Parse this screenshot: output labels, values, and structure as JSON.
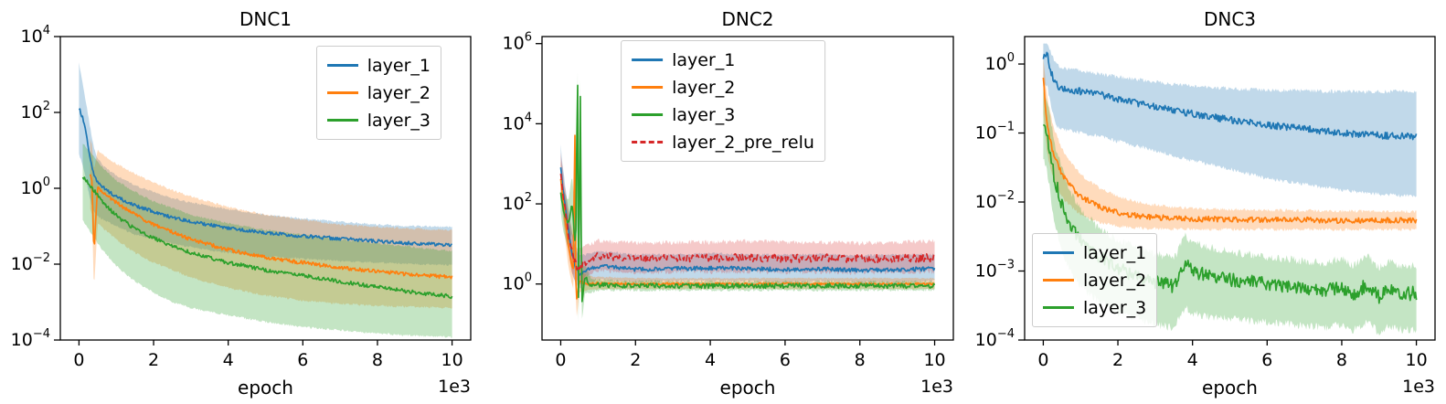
{
  "figure": {
    "background": "#ffffff"
  },
  "chart_data": [
    {
      "type": "line",
      "title": "DNC1",
      "xlabel": "epoch",
      "offset_label": "1e3",
      "y_scale": "log",
      "grid": false,
      "legend_position": "top-right",
      "xlim": [
        -500,
        10500
      ],
      "ylim": [
        0.0001,
        10000
      ],
      "xticks": [
        0,
        2000,
        4000,
        6000,
        8000,
        10000
      ],
      "xtick_labels": [
        "0",
        "2",
        "4",
        "6",
        "8",
        "10"
      ],
      "ytick_exponents": [
        4,
        2,
        0,
        -2,
        -4
      ],
      "series": [
        {
          "name": "layer_1",
          "color": "#1f77b4",
          "dash": false,
          "noise": 0.045,
          "band_alpha": 0.28,
          "x": [
            0,
            100,
            200,
            300,
            400,
            500,
            700,
            1000,
            1500,
            2000,
            2500,
            3000,
            4000,
            5000,
            6000,
            7000,
            8000,
            9000,
            10000
          ],
          "y": [
            130,
            70,
            25,
            6,
            2.2,
            1.4,
            0.95,
            0.6,
            0.35,
            0.24,
            0.17,
            0.13,
            0.09,
            0.068,
            0.055,
            0.047,
            0.04,
            0.035,
            0.032
          ],
          "ylo": [
            8,
            4,
            1.5,
            0.5,
            0.25,
            0.18,
            0.14,
            0.1,
            0.06,
            0.045,
            0.035,
            0.028,
            0.02,
            0.016,
            0.014,
            0.012,
            0.011,
            0.01,
            0.0095
          ],
          "yhi": [
            2000,
            600,
            150,
            40,
            12,
            6,
            3.5,
            2.2,
            1.2,
            0.8,
            0.55,
            0.42,
            0.28,
            0.2,
            0.16,
            0.13,
            0.11,
            0.1,
            0.095
          ]
        },
        {
          "name": "layer_2",
          "color": "#ff7f0e",
          "dash": false,
          "noise": 0.05,
          "band_alpha": 0.28,
          "x": [
            300,
            350,
            400,
            500,
            700,
            1000,
            1500,
            2000,
            2500,
            3000,
            4000,
            5000,
            6000,
            7000,
            8000,
            9000,
            10000
          ],
          "y": [
            2.5,
            1.6,
            0.02,
            1.1,
            0.7,
            0.42,
            0.2,
            0.11,
            0.07,
            0.045,
            0.024,
            0.015,
            0.011,
            0.008,
            0.0065,
            0.0052,
            0.0045
          ],
          "ylo": [
            0.3,
            0.2,
            0.002,
            0.12,
            0.08,
            0.045,
            0.02,
            0.011,
            0.007,
            0.0045,
            0.0024,
            0.0015,
            0.0011,
            0.0009,
            0.0008,
            0.00075,
            0.0007
          ],
          "yhi": [
            20,
            15,
            3,
            10,
            7,
            4.5,
            2.4,
            1.4,
            0.9,
            0.6,
            0.32,
            0.2,
            0.15,
            0.11,
            0.095,
            0.085,
            0.08
          ]
        },
        {
          "name": "layer_3",
          "color": "#2ca02c",
          "dash": false,
          "noise": 0.05,
          "band_alpha": 0.28,
          "x": [
            100,
            200,
            300,
            400,
            500,
            700,
            1000,
            1500,
            2000,
            2500,
            3000,
            4000,
            5000,
            6000,
            7000,
            8000,
            9000,
            10000
          ],
          "y": [
            2.0,
            1.6,
            1.2,
            0.9,
            0.65,
            0.38,
            0.19,
            0.085,
            0.048,
            0.03,
            0.02,
            0.011,
            0.007,
            0.005,
            0.0035,
            0.0025,
            0.0018,
            0.0014
          ],
          "ylo": [
            0.15,
            0.1,
            0.07,
            0.05,
            0.035,
            0.02,
            0.009,
            0.0035,
            0.0018,
            0.001,
            0.0007,
            0.00045,
            0.0003,
            0.00022,
            0.00018,
            0.00015,
            0.00013,
            0.00012
          ],
          "yhi": [
            15,
            12,
            9,
            7,
            5,
            3,
            1.6,
            0.8,
            0.45,
            0.3,
            0.2,
            0.12,
            0.08,
            0.06,
            0.045,
            0.035,
            0.028,
            0.022
          ]
        }
      ]
    },
    {
      "type": "line",
      "title": "DNC2",
      "xlabel": "epoch",
      "offset_label": "1e3",
      "y_scale": "log",
      "grid": false,
      "legend_position": "top-center",
      "xlim": [
        -500,
        10500
      ],
      "ylim": [
        0.04,
        1500000
      ],
      "xticks": [
        0,
        2000,
        4000,
        6000,
        8000,
        10000
      ],
      "xtick_labels": [
        "0",
        "2",
        "4",
        "6",
        "8",
        "10"
      ],
      "ytick_exponents": [
        6,
        4,
        2,
        0
      ],
      "series": [
        {
          "name": "layer_1",
          "color": "#1f77b4",
          "dash": false,
          "noise": 0.05,
          "band_alpha": 0.28,
          "x": [
            0,
            50,
            100,
            200,
            300,
            400,
            500,
            700,
            1000,
            1500,
            2000,
            3000,
            4000,
            5000,
            6000,
            7000,
            8000,
            9000,
            10000
          ],
          "y": [
            900,
            300,
            120,
            25,
            6,
            2.5,
            1.8,
            2.2,
            2.8,
            2.6,
            2.3,
            2.4,
            2.5,
            2.4,
            2.3,
            2.4,
            2.2,
            2.3,
            2.4
          ],
          "ylo": [
            300,
            100,
            40,
            8,
            2,
            1.0,
            0.8,
            1.0,
            1.3,
            1.2,
            1.1,
            1.2,
            1.2,
            1.2,
            1.1,
            1.2,
            1.1,
            1.1,
            1.2
          ],
          "yhi": [
            3000,
            900,
            400,
            80,
            20,
            7,
            5,
            5.5,
            6.5,
            6,
            5.5,
            5.5,
            5.8,
            5.5,
            5.4,
            5.5,
            5.2,
            5.4,
            5.5
          ]
        },
        {
          "name": "layer_2",
          "color": "#ff7f0e",
          "dash": false,
          "noise": 0.03,
          "band_alpha": 0.28,
          "x": [
            0,
            100,
            200,
            300,
            350,
            370,
            400,
            430,
            500,
            700,
            1000,
            2000,
            4000,
            6000,
            8000,
            10000
          ],
          "y": [
            400,
            60,
            10,
            3,
            2,
            500000,
            1.5,
            0.4,
            1.2,
            1.0,
            1.05,
            1.0,
            1.0,
            1.0,
            1.0,
            1.0
          ],
          "ylo": [
            150,
            20,
            3,
            1,
            0.7,
            50,
            0.5,
            0.15,
            0.6,
            0.7,
            0.75,
            0.75,
            0.75,
            0.75,
            0.75,
            0.75
          ],
          "yhi": [
            1200,
            200,
            40,
            10,
            8,
            600000,
            6,
            2,
            2.5,
            1.6,
            1.5,
            1.4,
            1.4,
            1.4,
            1.4,
            1.4
          ]
        },
        {
          "name": "layer_3",
          "color": "#2ca02c",
          "dash": false,
          "noise": 0.06,
          "band_alpha": 0.28,
          "x": [
            0,
            100,
            200,
            300,
            400,
            450,
            480,
            520,
            560,
            650,
            800,
            1000,
            1500,
            2000,
            3000,
            4000,
            5000,
            6000,
            7000,
            8000,
            9000,
            10000
          ],
          "y": [
            200,
            50,
            30,
            100,
            8,
            300000,
            0.07,
            150000,
            0.3,
            1.5,
            0.9,
            0.95,
            0.9,
            0.92,
            0.9,
            0.9,
            0.9,
            0.9,
            0.9,
            0.9,
            0.9,
            0.9
          ],
          "ylo": [
            60,
            15,
            8,
            20,
            1,
            100,
            0.04,
            80,
            0.1,
            0.6,
            0.6,
            0.7,
            0.7,
            0.7,
            0.7,
            0.7,
            0.7,
            0.7,
            0.7,
            0.7,
            0.7,
            0.7
          ],
          "yhi": [
            600,
            200,
            120,
            500,
            60,
            500000,
            2,
            400000,
            3,
            3,
            1.4,
            1.3,
            1.2,
            1.2,
            1.15,
            1.15,
            1.15,
            1.15,
            1.15,
            1.15,
            1.15,
            1.15
          ]
        },
        {
          "name": "layer_2_pre_relu",
          "color": "#d62728",
          "dash": true,
          "noise": 0.1,
          "band_alpha": 0.25,
          "x": [
            0,
            50,
            100,
            200,
            300,
            400,
            500,
            700,
            1000,
            1500,
            2000,
            3000,
            4000,
            5000,
            6000,
            7000,
            8000,
            9000,
            10000
          ],
          "y": [
            600,
            250,
            90,
            20,
            6,
            3,
            2.5,
            3.5,
            5,
            4.5,
            4.2,
            4.5,
            4.4,
            4.6,
            4.3,
            4.5,
            4.2,
            4.4,
            4.5
          ],
          "ylo": [
            200,
            80,
            30,
            6,
            2,
            1.2,
            1.0,
            1.5,
            2.2,
            2.0,
            1.9,
            2.0,
            2.0,
            2.0,
            1.9,
            2.0,
            1.9,
            2.0,
            2.0
          ],
          "yhi": [
            2000,
            800,
            300,
            70,
            20,
            9,
            7,
            9,
            12,
            11,
            10.5,
            11,
            11,
            11.5,
            11,
            11,
            10.5,
            11,
            12
          ]
        }
      ]
    },
    {
      "type": "line",
      "title": "DNC3",
      "xlabel": "epoch",
      "offset_label": "1e3",
      "y_scale": "log",
      "grid": false,
      "legend_position": "bottom-left",
      "xlim": [
        -500,
        10500
      ],
      "ylim": [
        0.0001,
        2.5
      ],
      "xticks": [
        0,
        2000,
        4000,
        6000,
        8000,
        10000
      ],
      "xtick_labels": [
        "0",
        "2",
        "4",
        "6",
        "8",
        "10"
      ],
      "ytick_exponents": [
        0,
        -1,
        -2,
        -3,
        -4
      ],
      "series": [
        {
          "name": "layer_1",
          "color": "#1f77b4",
          "dash": false,
          "noise": 0.05,
          "band_alpha": 0.28,
          "x": [
            0,
            100,
            200,
            300,
            400,
            600,
            1000,
            1500,
            2000,
            2500,
            3000,
            4000,
            5000,
            6000,
            7000,
            8000,
            9000,
            10000
          ],
          "y": [
            1.3,
            1.4,
            0.8,
            0.55,
            0.48,
            0.44,
            0.4,
            0.36,
            0.31,
            0.27,
            0.24,
            0.19,
            0.155,
            0.13,
            0.115,
            0.1,
            0.092,
            0.088
          ],
          "ylo": [
            0.5,
            0.5,
            0.25,
            0.15,
            0.12,
            0.11,
            0.1,
            0.09,
            0.075,
            0.065,
            0.055,
            0.04,
            0.03,
            0.022,
            0.018,
            0.015,
            0.013,
            0.012
          ],
          "yhi": [
            2.0,
            2.0,
            1.5,
            1.1,
            0.95,
            0.85,
            0.8,
            0.72,
            0.65,
            0.6,
            0.55,
            0.48,
            0.44,
            0.42,
            0.41,
            0.4,
            0.4,
            0.4
          ]
        },
        {
          "name": "layer_2",
          "color": "#ff7f0e",
          "dash": false,
          "noise": 0.04,
          "band_alpha": 0.28,
          "x": [
            0,
            100,
            200,
            300,
            500,
            700,
            1000,
            1500,
            2000,
            2500,
            3000,
            4000,
            5000,
            6000,
            7000,
            8000,
            9000,
            10000
          ],
          "y": [
            0.6,
            0.13,
            0.07,
            0.045,
            0.026,
            0.018,
            0.012,
            0.0085,
            0.007,
            0.0063,
            0.006,
            0.0057,
            0.0056,
            0.0055,
            0.0055,
            0.0054,
            0.0054,
            0.0054
          ],
          "ylo": [
            0.2,
            0.05,
            0.03,
            0.02,
            0.012,
            0.009,
            0.0065,
            0.005,
            0.0045,
            0.0042,
            0.0041,
            0.004,
            0.004,
            0.004,
            0.004,
            0.004,
            0.004,
            0.004
          ],
          "yhi": [
            1.2,
            0.35,
            0.18,
            0.11,
            0.06,
            0.04,
            0.025,
            0.016,
            0.012,
            0.01,
            0.009,
            0.008,
            0.0078,
            0.0076,
            0.0075,
            0.0074,
            0.0073,
            0.0073
          ]
        },
        {
          "name": "layer_3",
          "color": "#2ca02c",
          "dash": false,
          "noise": 0.1,
          "band_alpha": 0.28,
          "x": [
            0,
            100,
            200,
            300,
            500,
            700,
            1000,
            1500,
            2000,
            2500,
            3000,
            3500,
            3800,
            4000,
            4300,
            5000,
            6000,
            7000,
            7500,
            8000,
            8300,
            8700,
            9000,
            9300,
            9600,
            10000
          ],
          "y": [
            0.13,
            0.1,
            0.045,
            0.022,
            0.009,
            0.005,
            0.0028,
            0.0016,
            0.0011,
            0.00085,
            0.0007,
            0.0006,
            0.0013,
            0.001,
            0.0009,
            0.00075,
            0.00065,
            0.00055,
            0.0005,
            0.0006,
            0.00045,
            0.00065,
            0.00042,
            0.00055,
            0.00046,
            0.00048
          ],
          "ylo": [
            0.04,
            0.03,
            0.012,
            0.005,
            0.002,
            0.001,
            0.0006,
            0.00035,
            0.00025,
            0.0002,
            0.00017,
            0.00015,
            0.0003,
            0.00025,
            0.00022,
            0.0002,
            0.00018,
            0.00016,
            0.00015,
            0.00017,
            0.00014,
            0.00018,
            0.00013,
            0.00016,
            0.00014,
            0.00014
          ],
          "yhi": [
            0.4,
            0.3,
            0.15,
            0.07,
            0.03,
            0.015,
            0.008,
            0.004,
            0.0028,
            0.0022,
            0.0018,
            0.0015,
            0.0032,
            0.0026,
            0.0023,
            0.0019,
            0.0016,
            0.0014,
            0.0013,
            0.0015,
            0.0012,
            0.0016,
            0.0011,
            0.0014,
            0.0012,
            0.0012
          ]
        }
      ]
    }
  ]
}
